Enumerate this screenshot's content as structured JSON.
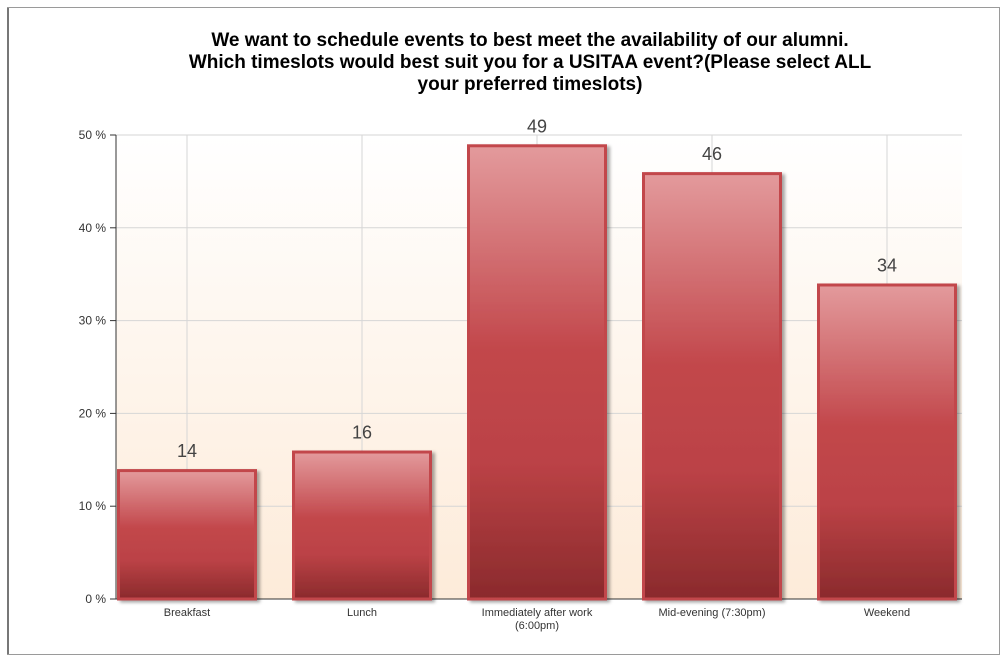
{
  "chart_data": {
    "type": "bar",
    "title": [
      "We want to schedule events to best meet the availability of our alumni.",
      "Which timeslots would best suit you for a USITAA event?(Please select ALL",
      "your preferred timeslots)"
    ],
    "categories": [
      "Breakfast",
      "Lunch",
      "Immediately after work (6:00pm)",
      "Mid-evening (7:30pm)",
      "Weekend"
    ],
    "values": [
      14,
      16,
      49,
      46,
      34
    ],
    "color": "#c2474b",
    "ylim": [
      0,
      50
    ],
    "yticks": [
      {
        "value": 0,
        "label": "0 %"
      },
      {
        "value": 10,
        "label": "10 %"
      },
      {
        "value": 20,
        "label": "20 %"
      },
      {
        "value": 30,
        "label": "30 %"
      },
      {
        "value": 40,
        "label": "40 %"
      },
      {
        "value": 50,
        "label": "50 %"
      }
    ],
    "grid": true
  }
}
